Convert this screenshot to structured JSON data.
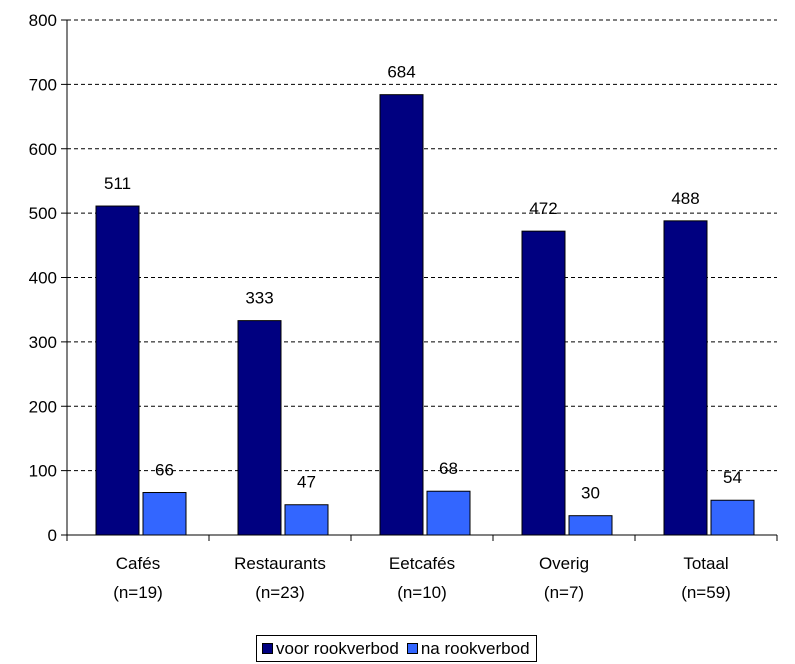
{
  "chart_data": {
    "type": "bar",
    "categories": [
      "Cafés",
      "Restaurants",
      "Eetcafés",
      "Overig",
      "Totaal"
    ],
    "category_sublabels": [
      "(n=19)",
      "(n=23)",
      "(n=10)",
      "(n=7)",
      "(n=59)"
    ],
    "series": [
      {
        "name": "voor rookverbod",
        "color": "#000080",
        "values": [
          511,
          333,
          684,
          472,
          488
        ],
        "labels": [
          "511",
          "333",
          "684",
          "472",
          "488"
        ]
      },
      {
        "name": "na rookverbod",
        "color": "#3366ff",
        "values": [
          66,
          47,
          68,
          30,
          54
        ],
        "labels": [
          "66",
          "47",
          "68",
          "30",
          "54"
        ]
      }
    ],
    "ylim": [
      0,
      800
    ],
    "yticks": [
      0,
      100,
      200,
      300,
      400,
      500,
      600,
      700,
      800
    ],
    "ytick_labels": [
      "0",
      "100",
      "200",
      "300",
      "400",
      "500",
      "600",
      "700",
      "800"
    ],
    "grid": "horizontal dashed",
    "legend_position": "bottom",
    "title": "",
    "xlabel": "",
    "ylabel": ""
  }
}
